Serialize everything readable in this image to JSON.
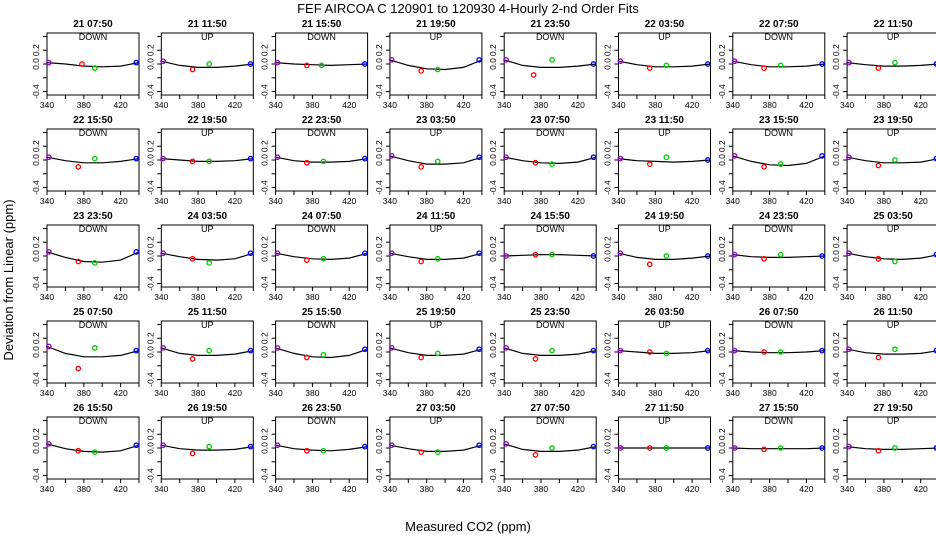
{
  "title": "FEF   AIRCOA C   120901 to 120930   4-Hourly 2-nd Order Fits",
  "xlabel": "Measured CO2 (ppm)",
  "ylabel": "Deviation from Linear (ppm)",
  "colors": {
    "curve": "#000000",
    "ref1": "#9900cc",
    "ref2": "#ff0000",
    "ref3": "#00cc00",
    "ref4": "#0000ff"
  },
  "chart_data": {
    "type": "scatter",
    "layout": {
      "rows": 5,
      "cols": 8
    },
    "xlim": [
      340,
      440
    ],
    "ylim": [
      -0.45,
      0.45
    ],
    "xticks": [
      "340",
      "380",
      "420"
    ],
    "yticks": [
      "-0.4",
      "0.0",
      "0.2"
    ],
    "panels": [
      {
        "title": "21 07:50",
        "mode": "DOWN",
        "points": [
          [
            342,
            0.02
          ],
          [
            378,
            0.0
          ],
          [
            392,
            -0.06
          ],
          [
            437,
            0.02
          ]
        ],
        "curve": [
          0.02,
          0.0,
          -0.03,
          -0.04,
          -0.03,
          0.02
        ]
      },
      {
        "title": "21 11:50",
        "mode": "UP",
        "points": [
          [
            342,
            0.04
          ],
          [
            374,
            -0.08
          ],
          [
            392,
            0.0
          ],
          [
            437,
            0.0
          ]
        ],
        "curve": [
          0.04,
          -0.02,
          -0.05,
          -0.05,
          -0.03,
          0.0
        ]
      },
      {
        "title": "21 15:50",
        "mode": "DOWN",
        "points": [
          [
            342,
            0.02
          ],
          [
            374,
            -0.02
          ],
          [
            390,
            -0.02
          ],
          [
            437,
            0.0
          ]
        ],
        "curve": [
          0.02,
          0.0,
          -0.01,
          -0.02,
          -0.01,
          0.0
        ]
      },
      {
        "title": "21 19:50",
        "mode": "UP",
        "points": [
          [
            342,
            0.06
          ],
          [
            374,
            -0.1
          ],
          [
            392,
            -0.08
          ],
          [
            437,
            0.06
          ]
        ],
        "curve": [
          0.06,
          -0.02,
          -0.07,
          -0.08,
          -0.05,
          0.06
        ]
      },
      {
        "title": "21 23:50",
        "mode": "DOWN",
        "points": [
          [
            342,
            0.06
          ],
          [
            372,
            -0.16
          ],
          [
            392,
            0.06
          ],
          [
            437,
            0.0
          ]
        ],
        "curve": [
          0.06,
          -0.02,
          -0.05,
          -0.05,
          -0.03,
          0.0
        ]
      },
      {
        "title": "22 03:50",
        "mode": "UP",
        "points": [
          [
            342,
            0.04
          ],
          [
            374,
            -0.06
          ],
          [
            392,
            -0.02
          ],
          [
            437,
            0.0
          ]
        ],
        "curve": [
          0.04,
          -0.01,
          -0.04,
          -0.04,
          -0.03,
          0.0
        ]
      },
      {
        "title": "22 07:50",
        "mode": "DOWN",
        "points": [
          [
            342,
            0.04
          ],
          [
            374,
            -0.06
          ],
          [
            392,
            -0.02
          ],
          [
            437,
            0.0
          ]
        ],
        "curve": [
          0.04,
          -0.01,
          -0.04,
          -0.04,
          -0.03,
          0.0
        ]
      },
      {
        "title": "22 11:50",
        "mode": "UP",
        "points": [
          [
            342,
            0.02
          ],
          [
            374,
            -0.06
          ],
          [
            392,
            0.02
          ],
          [
            437,
            0.0
          ]
        ],
        "curve": [
          0.02,
          -0.01,
          -0.03,
          -0.03,
          -0.02,
          0.0
        ]
      },
      {
        "title": "22 15:50",
        "mode": "DOWN",
        "points": [
          [
            342,
            0.04
          ],
          [
            374,
            -0.1
          ],
          [
            392,
            0.02
          ],
          [
            437,
            0.02
          ]
        ],
        "curve": [
          0.04,
          -0.01,
          -0.04,
          -0.04,
          -0.02,
          0.02
        ]
      },
      {
        "title": "22 19:50",
        "mode": "UP",
        "points": [
          [
            342,
            0.02
          ],
          [
            374,
            -0.02
          ],
          [
            392,
            -0.02
          ],
          [
            437,
            0.02
          ]
        ],
        "curve": [
          0.02,
          0.0,
          -0.02,
          -0.02,
          -0.01,
          0.02
        ]
      },
      {
        "title": "22 23:50",
        "mode": "DOWN",
        "points": [
          [
            342,
            0.04
          ],
          [
            374,
            -0.04
          ],
          [
            392,
            -0.02
          ],
          [
            437,
            0.02
          ]
        ],
        "curve": [
          0.04,
          -0.01,
          -0.03,
          -0.03,
          -0.02,
          0.02
        ]
      },
      {
        "title": "23 03:50",
        "mode": "UP",
        "points": [
          [
            342,
            0.06
          ],
          [
            374,
            -0.1
          ],
          [
            392,
            -0.02
          ],
          [
            437,
            0.04
          ]
        ],
        "curve": [
          0.06,
          -0.01,
          -0.06,
          -0.06,
          -0.04,
          0.04
        ]
      },
      {
        "title": "23 07:50",
        "mode": "DOWN",
        "points": [
          [
            342,
            0.04
          ],
          [
            374,
            -0.04
          ],
          [
            392,
            -0.06
          ],
          [
            437,
            0.04
          ]
        ],
        "curve": [
          0.04,
          -0.01,
          -0.04,
          -0.05,
          -0.03,
          0.04
        ]
      },
      {
        "title": "23 11:50",
        "mode": "UP",
        "points": [
          [
            342,
            0.02
          ],
          [
            374,
            -0.06
          ],
          [
            392,
            0.04
          ],
          [
            437,
            0.0
          ]
        ],
        "curve": [
          0.02,
          -0.01,
          -0.02,
          -0.03,
          -0.02,
          0.0
        ]
      },
      {
        "title": "23 15:50",
        "mode": "DOWN",
        "points": [
          [
            342,
            0.06
          ],
          [
            374,
            -0.1
          ],
          [
            392,
            -0.06
          ],
          [
            437,
            0.06
          ]
        ],
        "curve": [
          0.06,
          -0.02,
          -0.07,
          -0.08,
          -0.05,
          0.06
        ]
      },
      {
        "title": "23 19:50",
        "mode": "UP",
        "points": [
          [
            342,
            0.04
          ],
          [
            374,
            -0.08
          ],
          [
            392,
            0.0
          ],
          [
            437,
            0.02
          ]
        ],
        "curve": [
          0.04,
          -0.01,
          -0.04,
          -0.04,
          -0.03,
          0.02
        ]
      },
      {
        "title": "23 23:50",
        "mode": "DOWN",
        "points": [
          [
            342,
            0.06
          ],
          [
            374,
            -0.08
          ],
          [
            392,
            -0.1
          ],
          [
            437,
            0.06
          ]
        ],
        "curve": [
          0.06,
          -0.02,
          -0.08,
          -0.09,
          -0.06,
          0.06
        ]
      },
      {
        "title": "24 03:50",
        "mode": "UP",
        "points": [
          [
            342,
            0.04
          ],
          [
            374,
            -0.04
          ],
          [
            392,
            -0.1
          ],
          [
            437,
            0.04
          ]
        ],
        "curve": [
          0.04,
          -0.01,
          -0.05,
          -0.06,
          -0.04,
          0.04
        ]
      },
      {
        "title": "24 07:50",
        "mode": "DOWN",
        "points": [
          [
            342,
            0.04
          ],
          [
            374,
            -0.06
          ],
          [
            392,
            -0.04
          ],
          [
            437,
            0.04
          ]
        ],
        "curve": [
          0.04,
          -0.01,
          -0.04,
          -0.05,
          -0.03,
          0.04
        ]
      },
      {
        "title": "24 11:50",
        "mode": "UP",
        "points": [
          [
            342,
            0.04
          ],
          [
            374,
            -0.08
          ],
          [
            392,
            -0.04
          ],
          [
            437,
            0.04
          ]
        ],
        "curve": [
          0.04,
          -0.01,
          -0.05,
          -0.05,
          -0.03,
          0.04
        ]
      },
      {
        "title": "24 15:50",
        "mode": "DOWN",
        "points": [
          [
            342,
            0.0
          ],
          [
            374,
            0.02
          ],
          [
            392,
            0.02
          ],
          [
            437,
            0.0
          ]
        ],
        "curve": [
          0.0,
          0.01,
          0.02,
          0.02,
          0.01,
          0.0
        ]
      },
      {
        "title": "24 19:50",
        "mode": "UP",
        "points": [
          [
            342,
            0.04
          ],
          [
            374,
            -0.12
          ],
          [
            392,
            0.0
          ],
          [
            437,
            0.0
          ]
        ],
        "curve": [
          0.04,
          -0.02,
          -0.05,
          -0.05,
          -0.03,
          0.0
        ]
      },
      {
        "title": "24 23:50",
        "mode": "DOWN",
        "points": [
          [
            342,
            0.02
          ],
          [
            374,
            -0.04
          ],
          [
            392,
            0.02
          ],
          [
            437,
            0.0
          ]
        ],
        "curve": [
          0.02,
          -0.01,
          -0.02,
          -0.02,
          -0.01,
          0.0
        ]
      },
      {
        "title": "25 03:50",
        "mode": "UP",
        "points": [
          [
            342,
            0.04
          ],
          [
            374,
            -0.04
          ],
          [
            392,
            -0.08
          ],
          [
            437,
            0.02
          ]
        ],
        "curve": [
          0.04,
          -0.01,
          -0.04,
          -0.05,
          -0.03,
          0.02
        ]
      },
      {
        "title": "25 07:50",
        "mode": "DOWN",
        "points": [
          [
            342,
            0.08
          ],
          [
            374,
            -0.24
          ],
          [
            392,
            0.06
          ],
          [
            437,
            0.02
          ]
        ],
        "curve": [
          0.08,
          -0.02,
          -0.07,
          -0.07,
          -0.05,
          0.02
        ]
      },
      {
        "title": "25 11:50",
        "mode": "UP",
        "points": [
          [
            342,
            0.06
          ],
          [
            374,
            -0.1
          ],
          [
            392,
            0.02
          ],
          [
            437,
            0.02
          ]
        ],
        "curve": [
          0.06,
          -0.02,
          -0.05,
          -0.05,
          -0.03,
          0.02
        ]
      },
      {
        "title": "25 15:50",
        "mode": "DOWN",
        "points": [
          [
            342,
            0.06
          ],
          [
            374,
            -0.08
          ],
          [
            392,
            -0.04
          ],
          [
            437,
            0.04
          ]
        ],
        "curve": [
          0.06,
          -0.02,
          -0.07,
          -0.08,
          -0.05,
          0.04
        ]
      },
      {
        "title": "25 19:50",
        "mode": "UP",
        "points": [
          [
            342,
            0.06
          ],
          [
            374,
            -0.08
          ],
          [
            392,
            -0.02
          ],
          [
            437,
            0.04
          ]
        ],
        "curve": [
          0.06,
          -0.01,
          -0.05,
          -0.05,
          -0.03,
          0.04
        ]
      },
      {
        "title": "25 23:50",
        "mode": "DOWN",
        "points": [
          [
            342,
            0.06
          ],
          [
            374,
            -0.1
          ],
          [
            392,
            0.02
          ],
          [
            437,
            0.02
          ]
        ],
        "curve": [
          0.06,
          -0.02,
          -0.05,
          -0.05,
          -0.03,
          0.02
        ]
      },
      {
        "title": "26 03:50",
        "mode": "UP",
        "points": [
          [
            342,
            0.02
          ],
          [
            374,
            0.0
          ],
          [
            392,
            -0.02
          ],
          [
            437,
            0.02
          ]
        ],
        "curve": [
          0.02,
          0.0,
          -0.02,
          -0.02,
          -0.01,
          0.02
        ]
      },
      {
        "title": "26 07:50",
        "mode": "DOWN",
        "points": [
          [
            342,
            0.02
          ],
          [
            374,
            0.0
          ],
          [
            392,
            0.0
          ],
          [
            437,
            0.02
          ]
        ],
        "curve": [
          0.02,
          0.0,
          -0.01,
          -0.01,
          0.0,
          0.02
        ]
      },
      {
        "title": "26 11:50",
        "mode": "UP",
        "points": [
          [
            342,
            0.04
          ],
          [
            374,
            -0.08
          ],
          [
            392,
            0.04
          ],
          [
            437,
            0.02
          ]
        ],
        "curve": [
          0.04,
          -0.01,
          -0.03,
          -0.03,
          -0.02,
          0.02
        ]
      },
      {
        "title": "26 15:50",
        "mode": "DOWN",
        "points": [
          [
            342,
            0.06
          ],
          [
            374,
            -0.04
          ],
          [
            392,
            -0.06
          ],
          [
            437,
            0.04
          ]
        ],
        "curve": [
          0.06,
          -0.01,
          -0.05,
          -0.06,
          -0.04,
          0.04
        ]
      },
      {
        "title": "26 19:50",
        "mode": "UP",
        "points": [
          [
            342,
            0.04
          ],
          [
            374,
            -0.08
          ],
          [
            392,
            0.02
          ],
          [
            437,
            0.02
          ]
        ],
        "curve": [
          0.04,
          -0.01,
          -0.03,
          -0.03,
          -0.02,
          0.02
        ]
      },
      {
        "title": "26 23:50",
        "mode": "DOWN",
        "points": [
          [
            342,
            0.04
          ],
          [
            374,
            -0.04
          ],
          [
            392,
            -0.04
          ],
          [
            437,
            0.02
          ]
        ],
        "curve": [
          0.04,
          -0.01,
          -0.03,
          -0.04,
          -0.02,
          0.02
        ]
      },
      {
        "title": "27 03:50",
        "mode": "UP",
        "points": [
          [
            342,
            0.04
          ],
          [
            374,
            -0.06
          ],
          [
            392,
            -0.06
          ],
          [
            437,
            0.04
          ]
        ],
        "curve": [
          0.04,
          -0.01,
          -0.05,
          -0.05,
          -0.03,
          0.04
        ]
      },
      {
        "title": "27 07:50",
        "mode": "DOWN",
        "points": [
          [
            342,
            0.06
          ],
          [
            374,
            -0.1
          ],
          [
            392,
            0.0
          ],
          [
            437,
            0.02
          ]
        ],
        "curve": [
          0.06,
          -0.02,
          -0.05,
          -0.05,
          -0.03,
          0.02
        ]
      },
      {
        "title": "27 11:50",
        "mode": "UP",
        "points": [
          [
            342,
            0.0
          ],
          [
            374,
            0.0
          ],
          [
            392,
            0.0
          ],
          [
            437,
            0.0
          ]
        ],
        "curve": [
          0.0,
          0.0,
          0.0,
          0.0,
          0.0,
          0.0
        ]
      },
      {
        "title": "27 15:50",
        "mode": "DOWN",
        "points": [
          [
            342,
            0.0
          ],
          [
            374,
            -0.02
          ],
          [
            392,
            0.0
          ],
          [
            437,
            0.0
          ]
        ],
        "curve": [
          0.0,
          -0.01,
          -0.01,
          -0.01,
          -0.01,
          0.0
        ]
      },
      {
        "title": "27 19:50",
        "mode": "UP",
        "points": [
          [
            342,
            0.02
          ],
          [
            374,
            -0.04
          ],
          [
            392,
            0.0
          ],
          [
            437,
            0.0
          ]
        ],
        "curve": [
          0.02,
          -0.01,
          -0.02,
          -0.02,
          -0.01,
          0.0
        ]
      }
    ]
  }
}
